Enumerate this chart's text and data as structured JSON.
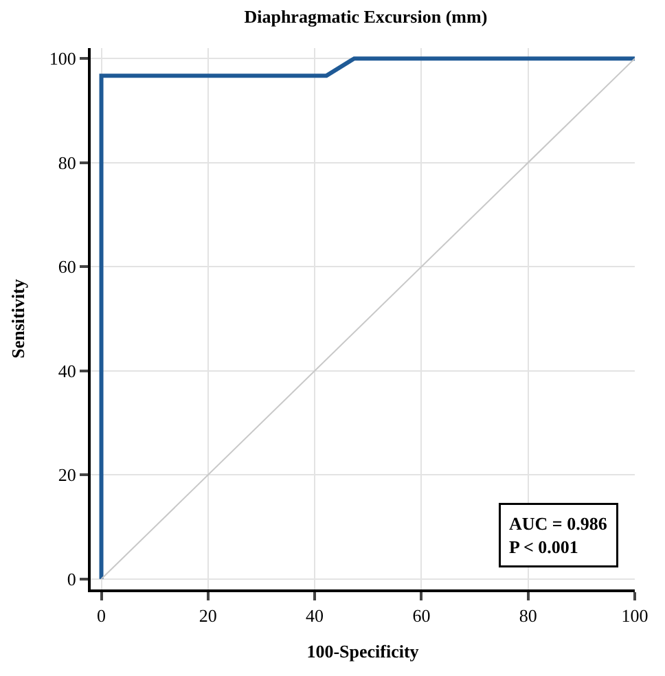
{
  "chart_data": {
    "type": "line",
    "title": "Diaphragmatic Excursion (mm)",
    "xlabel": "100-Specificity",
    "ylabel": "Sensitivity",
    "series": [
      {
        "x": [
          0,
          0,
          42.2,
          47.4,
          100
        ],
        "values": [
          0,
          96.7,
          96.7,
          100,
          100
        ],
        "color": "#1f5a96"
      },
      {
        "x": [
          0,
          100
        ],
        "values": [
          0,
          100
        ],
        "color": "#c8c8c8"
      }
    ],
    "xlim": [
      -2,
      100
    ],
    "ylim": [
      -2,
      102
    ],
    "xticks": [
      0,
      20,
      40,
      60,
      80,
      100
    ],
    "yticks": [
      0,
      20,
      40,
      60,
      80,
      100
    ],
    "grid": true,
    "marker": "none",
    "line_style": "solid",
    "annotations": [
      "AUC = 0.986\nP < 0.001"
    ]
  }
}
